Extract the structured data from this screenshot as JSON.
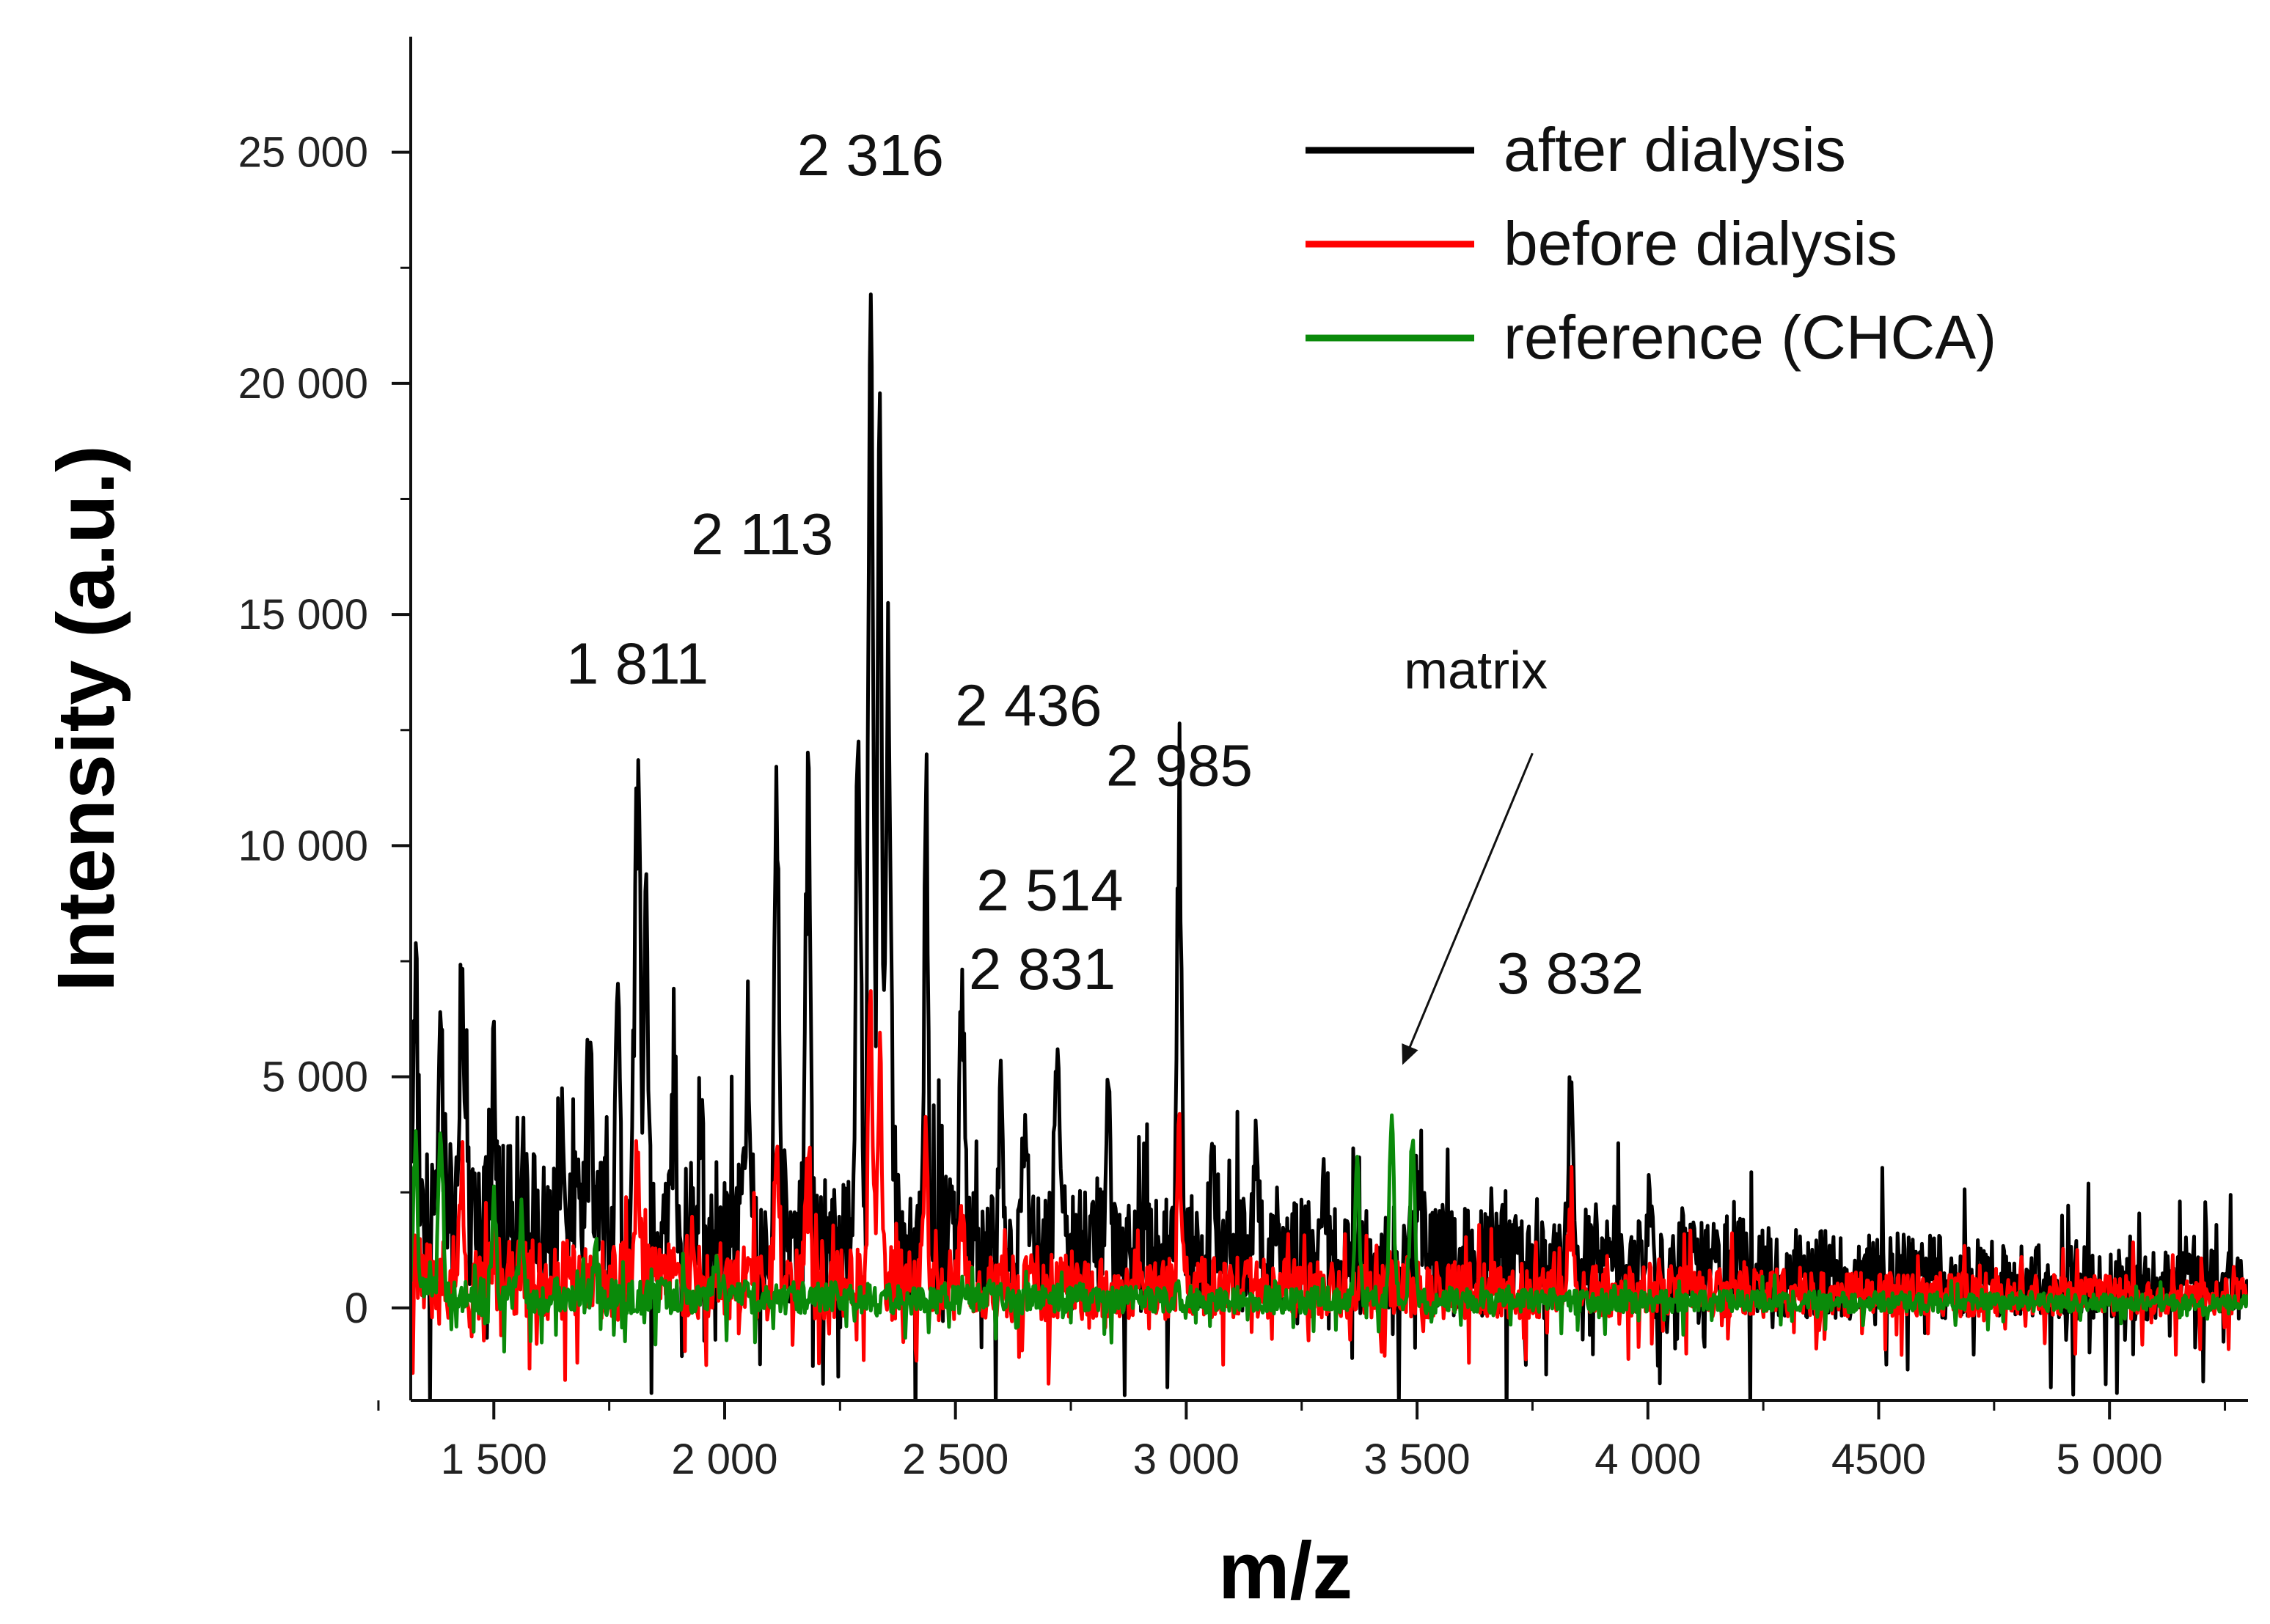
{
  "chart_data": {
    "type": "line",
    "xlabel": "m/z",
    "ylabel": "Intensity (a.u.)",
    "xlim": [
      1320,
      5300
    ],
    "ylim": [
      -2000,
      27500
    ],
    "x_ticks": [
      1500,
      2000,
      2500,
      3000,
      3500,
      4000,
      4500,
      5000
    ],
    "x_tick_labels": [
      "1 500",
      "2 000",
      "2 500",
      "3 000",
      "3 500",
      "4 000",
      "4500",
      "5 000"
    ],
    "y_ticks": [
      0,
      5000,
      10000,
      15000,
      20000,
      25000
    ],
    "y_tick_labels": [
      "0",
      "5 000",
      "10 000",
      "15 000",
      "20 000",
      "25 000"
    ],
    "series": [
      {
        "name": "after dialysis",
        "color": "#000000",
        "baseline": 2200,
        "baseline_decay_to": 500,
        "noise": 1700,
        "peaks": [
          {
            "mz": 1330,
            "intensity": 7400
          },
          {
            "mz": 1385,
            "intensity": 5800
          },
          {
            "mz": 1430,
            "intensity": 7000
          },
          {
            "mz": 1500,
            "intensity": 4800
          },
          {
            "mz": 1560,
            "intensity": 4000
          },
          {
            "mz": 1650,
            "intensity": 4300
          },
          {
            "mz": 1710,
            "intensity": 4800
          },
          {
            "mz": 1770,
            "intensity": 6600
          },
          {
            "mz": 1811,
            "intensity": 11600
          },
          {
            "mz": 1830,
            "intensity": 8800
          },
          {
            "mz": 1890,
            "intensity": 5400
          },
          {
            "mz": 1950,
            "intensity": 4800
          },
          {
            "mz": 2050,
            "intensity": 5600
          },
          {
            "mz": 2113,
            "intensity": 10700
          },
          {
            "mz": 2180,
            "intensity": 12600
          },
          {
            "mz": 2290,
            "intensity": 12200
          },
          {
            "mz": 2316,
            "intensity": 22700
          },
          {
            "mz": 2336,
            "intensity": 19000
          },
          {
            "mz": 2355,
            "intensity": 14200
          },
          {
            "mz": 2436,
            "intensity": 9200
          },
          {
            "mz": 2514,
            "intensity": 6800
          },
          {
            "mz": 2600,
            "intensity": 4200
          },
          {
            "mz": 2650,
            "intensity": 3500
          },
          {
            "mz": 2720,
            "intensity": 5500
          },
          {
            "mz": 2831,
            "intensity": 5600
          },
          {
            "mz": 2985,
            "intensity": 10400
          },
          {
            "mz": 3060,
            "intensity": 3200
          },
          {
            "mz": 3150,
            "intensity": 3300
          },
          {
            "mz": 3300,
            "intensity": 2800
          },
          {
            "mz": 3500,
            "intensity": 2500
          },
          {
            "mz": 3832,
            "intensity": 4900
          },
          {
            "mz": 4000,
            "intensity": 2100
          },
          {
            "mz": 4200,
            "intensity": 1500
          },
          {
            "mz": 4600,
            "intensity": 1300
          }
        ]
      },
      {
        "name": "before dialysis",
        "color": "#ff0000",
        "baseline": 700,
        "baseline_decay_to": 250,
        "noise": 900,
        "peaks": [
          {
            "mz": 1430,
            "intensity": 3000
          },
          {
            "mz": 1811,
            "intensity": 3200
          },
          {
            "mz": 2113,
            "intensity": 3600
          },
          {
            "mz": 2180,
            "intensity": 4300
          },
          {
            "mz": 2316,
            "intensity": 6600
          },
          {
            "mz": 2336,
            "intensity": 5200
          },
          {
            "mz": 2436,
            "intensity": 3000
          },
          {
            "mz": 2514,
            "intensity": 2200
          },
          {
            "mz": 2985,
            "intensity": 3700
          },
          {
            "mz": 3832,
            "intensity": 1800
          }
        ]
      },
      {
        "name": "reference (CHCA)",
        "color": "#0a8a0a",
        "baseline": 300,
        "baseline_decay_to": 100,
        "noise": 400,
        "peaks": [
          {
            "mz": 1330,
            "intensity": 3500
          },
          {
            "mz": 1385,
            "intensity": 4000
          },
          {
            "mz": 1500,
            "intensity": 2400
          },
          {
            "mz": 1560,
            "intensity": 2000
          },
          {
            "mz": 1720,
            "intensity": 1500
          },
          {
            "mz": 1980,
            "intensity": 900
          },
          {
            "mz": 3370,
            "intensity": 3200
          },
          {
            "mz": 3445,
            "intensity": 4000
          },
          {
            "mz": 3490,
            "intensity": 3700
          }
        ]
      }
    ],
    "peak_labels": [
      {
        "mz": 1811,
        "label": "1 811",
        "text_y": 13500
      },
      {
        "mz": 2113,
        "label": "2 113",
        "text_y": 16300
      },
      {
        "mz": 2316,
        "label": "2 316",
        "text_y": 24500
      },
      {
        "mz": 2436,
        "label": "2 436",
        "text_y": 12600
      },
      {
        "mz": 2514,
        "label": "2 514",
        "text_y": 8600
      },
      {
        "mz": 2831,
        "label": "2 831",
        "text_y": 6900
      },
      {
        "mz": 2985,
        "label": "2 985",
        "text_y": 11300
      },
      {
        "mz": 3832,
        "label": "3 832",
        "text_y": 6800
      }
    ],
    "annotation": {
      "text": "matrix",
      "text_mz": 3500,
      "text_y": 13400,
      "arrow_from_mz": 3750,
      "arrow_from_y": 12000,
      "arrow_to_mz": 3470,
      "arrow_to_y": 5300
    },
    "legend_placement": "top-right"
  }
}
